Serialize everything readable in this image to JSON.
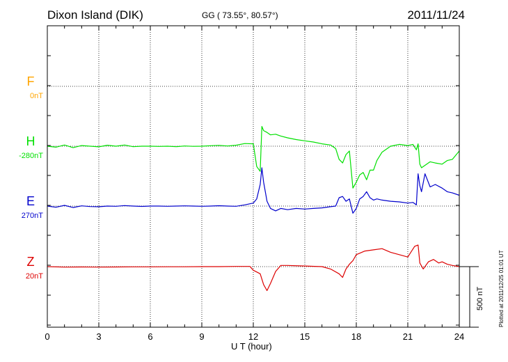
{
  "header": {
    "station": "Dixon Island (DIK)",
    "coords": "GG ( 73.55°,  80.57°)",
    "date": "2011/11/24"
  },
  "footer": {
    "plotted": "Plotted at 2011/12/25 01:01 UT",
    "scale_label": "500 nT"
  },
  "colors": {
    "F": "#ffa500",
    "H": "#00e000",
    "E": "#0000cc",
    "Z": "#dd0000"
  },
  "chart_data": {
    "type": "line",
    "xlabel": "U T (hour)",
    "xlim": [
      0,
      24
    ],
    "xticks": [
      0,
      3,
      6,
      9,
      12,
      15,
      18,
      21,
      24
    ],
    "xtick_labels": [
      "0",
      "3",
      "6",
      "9",
      "12",
      "15",
      "18",
      "21",
      "24"
    ],
    "ylabel": "",
    "scale_bar_nT": 500,
    "grid": true,
    "series": [
      {
        "name": "F",
        "offset_label": "0nT",
        "baseline_nT": 0,
        "x": [],
        "y": []
      },
      {
        "name": "H",
        "offset_label": "-280nT",
        "x": [
          0,
          0.5,
          1,
          1.5,
          2,
          2.5,
          3,
          3.5,
          4,
          4.5,
          5,
          5.5,
          6,
          6.5,
          7,
          7.5,
          8,
          8.5,
          9,
          9.5,
          10,
          10.5,
          11,
          11.5,
          12,
          12.2,
          12.4,
          12.5,
          12.6,
          12.8,
          13,
          13.3,
          13.6,
          14,
          14.5,
          15,
          15.5,
          16,
          16.5,
          16.8,
          17,
          17.2,
          17.4,
          17.6,
          17.8,
          18,
          18.2,
          18.4,
          18.6,
          18.8,
          19,
          19.2,
          19.5,
          20,
          20.5,
          21,
          21.3,
          21.5,
          21.6,
          21.7,
          21.8,
          22,
          22.3,
          22.6,
          23,
          23.3,
          23.6,
          24
        ],
        "y": [
          0,
          -8,
          10,
          -12,
          5,
          0,
          -5,
          8,
          0,
          10,
          -4,
          0,
          0,
          -2,
          0,
          -4,
          2,
          -1,
          0,
          4,
          7,
          2,
          8,
          22,
          20,
          -170,
          -210,
          165,
          130,
          115,
          95,
          100,
          85,
          70,
          55,
          45,
          35,
          20,
          10,
          -20,
          -110,
          -140,
          -70,
          -40,
          -350,
          -300,
          -240,
          -220,
          -280,
          -200,
          -200,
          -120,
          -50,
          0,
          15,
          5,
          15,
          -30,
          20,
          -150,
          -180,
          -160,
          -130,
          -140,
          -150,
          -120,
          -110,
          -40
        ]
      },
      {
        "name": "E",
        "offset_label": "270nT",
        "x": [
          0,
          0.5,
          1,
          1.5,
          2,
          2.5,
          3,
          3.5,
          4,
          4.5,
          5,
          5.5,
          6,
          6.5,
          7,
          7.5,
          8,
          8.5,
          9,
          9.5,
          10,
          10.5,
          11,
          11.5,
          12,
          12.2,
          12.4,
          12.5,
          12.6,
          12.8,
          13,
          13.3,
          13.6,
          14,
          14.5,
          15,
          15.5,
          16,
          16.5,
          16.8,
          17,
          17.2,
          17.4,
          17.6,
          17.8,
          18,
          18.2,
          18.4,
          18.6,
          18.8,
          19,
          19.2,
          19.5,
          20,
          20.5,
          21,
          21.3,
          21.5,
          21.6,
          21.7,
          21.8,
          22,
          22.3,
          22.6,
          23,
          23.3,
          23.6,
          24
        ],
        "y": [
          0,
          -10,
          6,
          -12,
          2,
          -4,
          -6,
          0,
          -2,
          4,
          0,
          -3,
          0,
          0,
          -2,
          0,
          2,
          0,
          -2,
          0,
          3,
          0,
          -2,
          10,
          25,
          60,
          180,
          320,
          200,
          40,
          -20,
          -40,
          -20,
          -30,
          -20,
          -25,
          -20,
          -15,
          -5,
          0,
          70,
          80,
          40,
          60,
          -60,
          -20,
          60,
          80,
          120,
          70,
          50,
          60,
          50,
          40,
          35,
          25,
          30,
          10,
          270,
          170,
          120,
          270,
          160,
          180,
          150,
          120,
          110,
          90
        ]
      },
      {
        "name": "Z",
        "offset_label": "20nT",
        "x": [
          0,
          1,
          2,
          3,
          4,
          5,
          6,
          7,
          8,
          9,
          10,
          11,
          11.8,
          12,
          12.2,
          12.4,
          12.6,
          12.8,
          13,
          13.3,
          13.6,
          14,
          15,
          16,
          16.5,
          17,
          17.2,
          17.4,
          17.6,
          17.8,
          18,
          18.5,
          19,
          19.5,
          20,
          20.5,
          21,
          21.4,
          21.6,
          21.7,
          21.9,
          22.2,
          22.5,
          22.8,
          23,
          23.3,
          23.6,
          24
        ],
        "y": [
          0,
          -4,
          -3,
          -4,
          -3,
          -2,
          -2,
          -1,
          -1,
          0,
          0,
          2,
          2,
          -30,
          -45,
          -60,
          -150,
          -200,
          -140,
          -40,
          10,
          10,
          5,
          0,
          -20,
          -60,
          -90,
          -20,
          20,
          50,
          100,
          130,
          140,
          150,
          120,
          100,
          80,
          170,
          180,
          30,
          -20,
          40,
          60,
          30,
          40,
          20,
          10,
          0
        ]
      }
    ]
  }
}
